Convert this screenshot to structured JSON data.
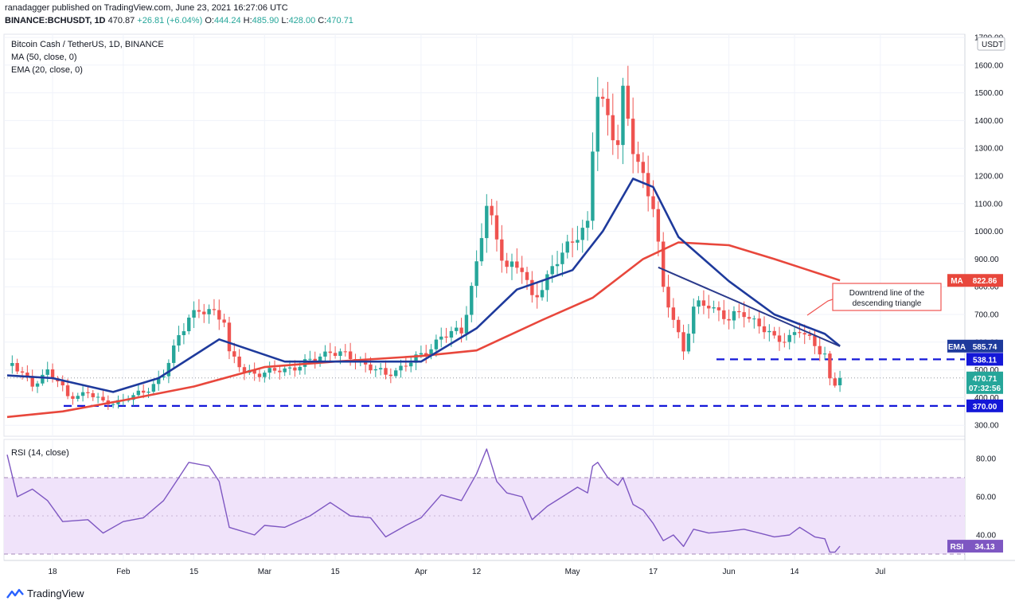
{
  "header": {
    "line1": "ranadagger published on TradingView.com, June 23, 2021 16:27:06 UTC",
    "symbol": "BINANCE:BCHUSDT, 1D",
    "o_label": "O:",
    "o_val": "444.24",
    "h_label": "H:",
    "h_val": "485.90",
    "l_label": "L:",
    "l_val": "428.00",
    "c_label": "C:",
    "c_val": "470.71",
    "last_val": "470.87",
    "change": "+26.81 (+6.04%)"
  },
  "legend": {
    "title": "Bitcoin Cash / TetherUS, 1D, BINANCE",
    "ma": "MA (50, close, 0)",
    "ema": "EMA (20, close, 0)",
    "rsi": "RSI (14, close)"
  },
  "annotation": "Downtrend line of the descending triangle",
  "footer": {
    "brand": "TradingView"
  },
  "colors": {
    "up": "#26a69a",
    "down": "#ef5350",
    "ema": "#1e3a9c",
    "ma": "#e8473c",
    "rsi": "#7e57c2",
    "level": "#1418d8",
    "rsi_band": "#f0e3fa"
  },
  "chart_data": [
    {
      "type": "candlestick",
      "title": "Bitcoin Cash / TetherUS, 1D, BINANCE",
      "currency": "USDT",
      "ylim": [
        270,
        1700
      ],
      "price_ticks": [
        300,
        400,
        500,
        600,
        700,
        800,
        900,
        1000,
        1100,
        1200,
        1300,
        1400,
        1500,
        1600,
        1700
      ],
      "price_tick_labels": [
        "300.00",
        "400.00",
        "500.00",
        "600.00",
        "700.00",
        "800.00",
        "900.00",
        "1000.00",
        "1100.00",
        "1200.00",
        "1300.00",
        "1400.00",
        "1500.00",
        "1600.00",
        "1700.00"
      ],
      "x_tick_labels": [
        {
          "date": "2021-01-18",
          "label": "18"
        },
        {
          "date": "2021-02-01",
          "label": "Feb"
        },
        {
          "date": "2021-02-15",
          "label": "15"
        },
        {
          "date": "2021-03-01",
          "label": "Mar"
        },
        {
          "date": "2021-03-15",
          "label": "15"
        },
        {
          "date": "2021-04-01",
          "label": "Apr"
        },
        {
          "date": "2021-04-12",
          "label": "12"
        },
        {
          "date": "2021-05-01",
          "label": "May"
        },
        {
          "date": "2021-05-17",
          "label": "17"
        },
        {
          "date": "2021-06-01",
          "label": "Jun"
        },
        {
          "date": "2021-06-14",
          "label": "14"
        },
        {
          "date": "2021-07-01",
          "label": "Jul"
        }
      ],
      "anchor_closes": [
        {
          "date": "2021-01-10",
          "close": 530
        },
        {
          "date": "2021-01-14",
          "close": 440
        },
        {
          "date": "2021-01-17",
          "close": 500
        },
        {
          "date": "2021-01-19",
          "close": 460
        },
        {
          "date": "2021-01-21",
          "close": 400
        },
        {
          "date": "2021-01-25",
          "close": 420
        },
        {
          "date": "2021-01-28",
          "close": 380
        },
        {
          "date": "2021-02-01",
          "close": 390
        },
        {
          "date": "2021-02-05",
          "close": 420
        },
        {
          "date": "2021-02-09",
          "close": 480
        },
        {
          "date": "2021-02-12",
          "close": 620
        },
        {
          "date": "2021-02-14",
          "close": 700
        },
        {
          "date": "2021-02-18",
          "close": 710
        },
        {
          "date": "2021-02-21",
          "close": 690
        },
        {
          "date": "2021-02-22",
          "close": 560
        },
        {
          "date": "2021-02-25",
          "close": 490
        },
        {
          "date": "2021-03-01",
          "close": 490
        },
        {
          "date": "2021-03-05",
          "close": 500
        },
        {
          "date": "2021-03-10",
          "close": 530
        },
        {
          "date": "2021-03-14",
          "close": 570
        },
        {
          "date": "2021-03-20",
          "close": 530
        },
        {
          "date": "2021-03-25",
          "close": 480
        },
        {
          "date": "2021-03-29",
          "close": 520
        },
        {
          "date": "2021-04-01",
          "close": 550
        },
        {
          "date": "2021-04-05",
          "close": 620
        },
        {
          "date": "2021-04-09",
          "close": 640
        },
        {
          "date": "2021-04-12",
          "close": 880
        },
        {
          "date": "2021-04-14",
          "close": 1090
        },
        {
          "date": "2021-04-16",
          "close": 970
        },
        {
          "date": "2021-04-18",
          "close": 880
        },
        {
          "date": "2021-04-21",
          "close": 860
        },
        {
          "date": "2021-04-23",
          "close": 760
        },
        {
          "date": "2021-04-26",
          "close": 830
        },
        {
          "date": "2021-04-29",
          "close": 920
        },
        {
          "date": "2021-05-02",
          "close": 1000
        },
        {
          "date": "2021-05-04",
          "close": 1010
        },
        {
          "date": "2021-05-05",
          "close": 1290
        },
        {
          "date": "2021-05-06",
          "close": 1500
        },
        {
          "date": "2021-05-08",
          "close": 1420
        },
        {
          "date": "2021-05-10",
          "close": 1320
        },
        {
          "date": "2021-05-11",
          "close": 1480
        },
        {
          "date": "2021-05-13",
          "close": 1300
        },
        {
          "date": "2021-05-15",
          "close": 1200
        },
        {
          "date": "2021-05-17",
          "close": 1100
        },
        {
          "date": "2021-05-19",
          "close": 780
        },
        {
          "date": "2021-05-21",
          "close": 690
        },
        {
          "date": "2021-05-23",
          "close": 570
        },
        {
          "date": "2021-05-25",
          "close": 720
        },
        {
          "date": "2021-05-28",
          "close": 740
        },
        {
          "date": "2021-06-01",
          "close": 680
        },
        {
          "date": "2021-06-04",
          "close": 710
        },
        {
          "date": "2021-06-07",
          "close": 660
        },
        {
          "date": "2021-06-10",
          "close": 610
        },
        {
          "date": "2021-06-13",
          "close": 620
        },
        {
          "date": "2021-06-15",
          "close": 640
        },
        {
          "date": "2021-06-18",
          "close": 590
        },
        {
          "date": "2021-06-20",
          "close": 560
        },
        {
          "date": "2021-06-21",
          "close": 460
        },
        {
          "date": "2021-06-22",
          "close": 444
        },
        {
          "date": "2021-06-23",
          "close": 470.71
        }
      ],
      "ma50": [
        {
          "date": "2021-01-09",
          "value": 330
        },
        {
          "date": "2021-01-20",
          "value": 350
        },
        {
          "date": "2021-02-01",
          "value": 390
        },
        {
          "date": "2021-02-15",
          "value": 440
        },
        {
          "date": "2021-03-01",
          "value": 510
        },
        {
          "date": "2021-03-15",
          "value": 530
        },
        {
          "date": "2021-04-01",
          "value": 550
        },
        {
          "date": "2021-04-12",
          "value": 570
        },
        {
          "date": "2021-04-25",
          "value": 680
        },
        {
          "date": "2021-05-05",
          "value": 760
        },
        {
          "date": "2021-05-15",
          "value": 900
        },
        {
          "date": "2021-05-22",
          "value": 960
        },
        {
          "date": "2021-06-01",
          "value": 950
        },
        {
          "date": "2021-06-10",
          "value": 900
        },
        {
          "date": "2021-06-23",
          "value": 822.86
        }
      ],
      "ema20": [
        {
          "date": "2021-01-09",
          "value": 480
        },
        {
          "date": "2021-01-18",
          "value": 470
        },
        {
          "date": "2021-01-30",
          "value": 420
        },
        {
          "date": "2021-02-08",
          "value": 470
        },
        {
          "date": "2021-02-20",
          "value": 610
        },
        {
          "date": "2021-03-05",
          "value": 530
        },
        {
          "date": "2021-03-20",
          "value": 530
        },
        {
          "date": "2021-04-01",
          "value": 530
        },
        {
          "date": "2021-04-12",
          "value": 650
        },
        {
          "date": "2021-04-20",
          "value": 790
        },
        {
          "date": "2021-05-01",
          "value": 860
        },
        {
          "date": "2021-05-07",
          "value": 1000
        },
        {
          "date": "2021-05-13",
          "value": 1190
        },
        {
          "date": "2021-05-17",
          "value": 1160
        },
        {
          "date": "2021-05-22",
          "value": 980
        },
        {
          "date": "2021-06-01",
          "value": 820
        },
        {
          "date": "2021-06-10",
          "value": 700
        },
        {
          "date": "2021-06-20",
          "value": 630
        },
        {
          "date": "2021-06-23",
          "value": 585.74
        }
      ],
      "downtrend_line": [
        {
          "date": "2021-05-18",
          "value": 870
        },
        {
          "date": "2021-06-23",
          "value": 585
        }
      ],
      "levels": [
        {
          "label": "538.11",
          "value": 538.11
        },
        {
          "label": "370.00",
          "value": 370
        }
      ],
      "badges": [
        {
          "name": "MA",
          "value": "822.86"
        },
        {
          "name": "EMA",
          "value": "585.74"
        },
        {
          "name": "last",
          "value": "470.71",
          "countdown": "07:32:56"
        }
      ]
    },
    {
      "type": "line",
      "title": "RSI (14, close)",
      "ylim": [
        27,
        87
      ],
      "ticks": [
        40,
        60,
        80
      ],
      "tick_labels": [
        "40.00",
        "60.00",
        "80.00"
      ],
      "band": [
        30,
        70
      ],
      "last": "34.13",
      "series": [
        {
          "date": "2021-01-09",
          "value": 82
        },
        {
          "date": "2021-01-11",
          "value": 60
        },
        {
          "date": "2021-01-14",
          "value": 64
        },
        {
          "date": "2021-01-17",
          "value": 58
        },
        {
          "date": "2021-01-20",
          "value": 47
        },
        {
          "date": "2021-01-25",
          "value": 48
        },
        {
          "date": "2021-01-28",
          "value": 41
        },
        {
          "date": "2021-02-01",
          "value": 47
        },
        {
          "date": "2021-02-05",
          "value": 49
        },
        {
          "date": "2021-02-09",
          "value": 58
        },
        {
          "date": "2021-02-12",
          "value": 70
        },
        {
          "date": "2021-02-14",
          "value": 78
        },
        {
          "date": "2021-02-18",
          "value": 76
        },
        {
          "date": "2021-02-20",
          "value": 68
        },
        {
          "date": "2021-02-22",
          "value": 44
        },
        {
          "date": "2021-02-27",
          "value": 40
        },
        {
          "date": "2021-03-01",
          "value": 45
        },
        {
          "date": "2021-03-05",
          "value": 44
        },
        {
          "date": "2021-03-10",
          "value": 50
        },
        {
          "date": "2021-03-14",
          "value": 57
        },
        {
          "date": "2021-03-18",
          "value": 50
        },
        {
          "date": "2021-03-22",
          "value": 49
        },
        {
          "date": "2021-03-25",
          "value": 39
        },
        {
          "date": "2021-03-29",
          "value": 45
        },
        {
          "date": "2021-04-01",
          "value": 49
        },
        {
          "date": "2021-04-05",
          "value": 61
        },
        {
          "date": "2021-04-09",
          "value": 58
        },
        {
          "date": "2021-04-12",
          "value": 72
        },
        {
          "date": "2021-04-14",
          "value": 85
        },
        {
          "date": "2021-04-16",
          "value": 68
        },
        {
          "date": "2021-04-18",
          "value": 62
        },
        {
          "date": "2021-04-21",
          "value": 60
        },
        {
          "date": "2021-04-23",
          "value": 48
        },
        {
          "date": "2021-04-26",
          "value": 55
        },
        {
          "date": "2021-04-29",
          "value": 60
        },
        {
          "date": "2021-05-02",
          "value": 65
        },
        {
          "date": "2021-05-04",
          "value": 62
        },
        {
          "date": "2021-05-05",
          "value": 76
        },
        {
          "date": "2021-05-06",
          "value": 78
        },
        {
          "date": "2021-05-08",
          "value": 70
        },
        {
          "date": "2021-05-10",
          "value": 66
        },
        {
          "date": "2021-05-11",
          "value": 70
        },
        {
          "date": "2021-05-13",
          "value": 56
        },
        {
          "date": "2021-05-15",
          "value": 53
        },
        {
          "date": "2021-05-17",
          "value": 46
        },
        {
          "date": "2021-05-19",
          "value": 37
        },
        {
          "date": "2021-05-21",
          "value": 40
        },
        {
          "date": "2021-05-23",
          "value": 34
        },
        {
          "date": "2021-05-25",
          "value": 43
        },
        {
          "date": "2021-05-28",
          "value": 41
        },
        {
          "date": "2021-06-01",
          "value": 42
        },
        {
          "date": "2021-06-04",
          "value": 43
        },
        {
          "date": "2021-06-07",
          "value": 41
        },
        {
          "date": "2021-06-10",
          "value": 39
        },
        {
          "date": "2021-06-13",
          "value": 40
        },
        {
          "date": "2021-06-15",
          "value": 44
        },
        {
          "date": "2021-06-18",
          "value": 39
        },
        {
          "date": "2021-06-20",
          "value": 38
        },
        {
          "date": "2021-06-21",
          "value": 31
        },
        {
          "date": "2021-06-22",
          "value": 31
        },
        {
          "date": "2021-06-23",
          "value": 34.13
        }
      ]
    }
  ]
}
